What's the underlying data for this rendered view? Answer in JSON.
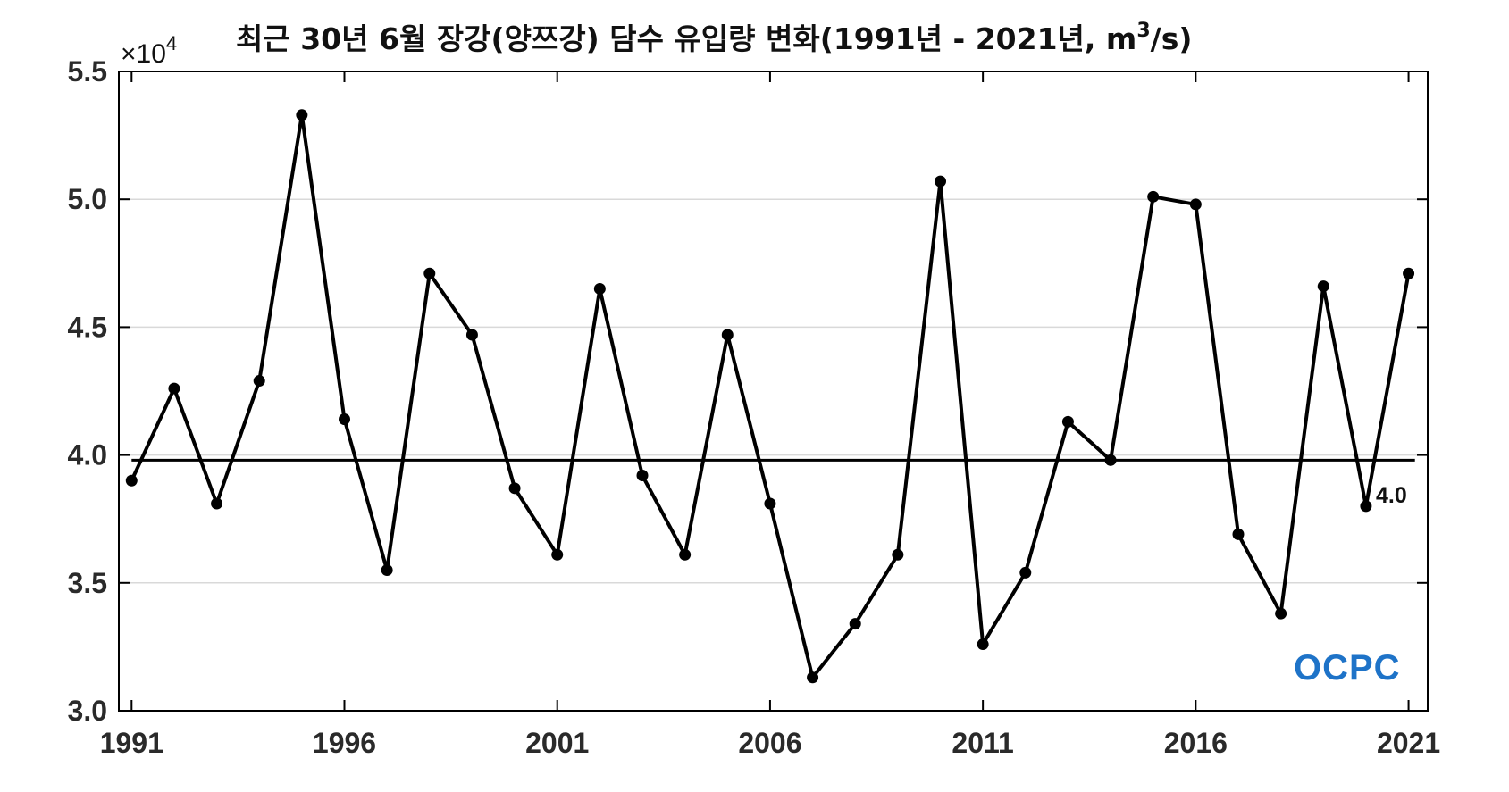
{
  "chart_data": {
    "type": "line",
    "title_main": "최근 30년 6월 장강(양쯔강) 담수 유입량 변화(1991년 - 2021년, m",
    "title_sup": "3",
    "title_tail": "/s)",
    "exponent_prefix": "×10",
    "exponent_power": "4",
    "xlim": [
      1990.7,
      2021.45
    ],
    "ylim": [
      3.0,
      5.5
    ],
    "x_ticks": [
      "1991",
      "1996",
      "2001",
      "2006",
      "2011",
      "2016",
      "2021"
    ],
    "y_ticks": [
      "3.0",
      "3.5",
      "4.0",
      "4.5",
      "5.0",
      "5.5"
    ],
    "grid": "horizontal",
    "series": [
      {
        "x": [
          1991,
          1992,
          1993,
          1994,
          1995,
          1996,
          1997,
          1998,
          1999,
          2000,
          2001,
          2002,
          2003,
          2004,
          2005,
          2006,
          2007,
          2008,
          2009,
          2010,
          2011,
          2012,
          2013,
          2014,
          2015,
          2016,
          2017,
          2018,
          2019,
          2020,
          2021
        ],
        "values": [
          3.9,
          4.26,
          3.81,
          4.29,
          5.33,
          4.14,
          3.55,
          4.71,
          4.47,
          3.87,
          3.61,
          4.65,
          3.92,
          3.61,
          4.47,
          3.81,
          3.13,
          3.34,
          3.61,
          5.07,
          3.26,
          3.54,
          4.13,
          3.98,
          5.01,
          4.98,
          3.69,
          3.38,
          4.66,
          3.8,
          4.71
        ]
      }
    ],
    "reference_line": {
      "value": 3.98,
      "label": "4.0"
    },
    "colors": {
      "line": "#000000",
      "grid": "#d9d9d9",
      "logo": "#1e73c8"
    }
  },
  "logo": {
    "text": "OCPC"
  }
}
